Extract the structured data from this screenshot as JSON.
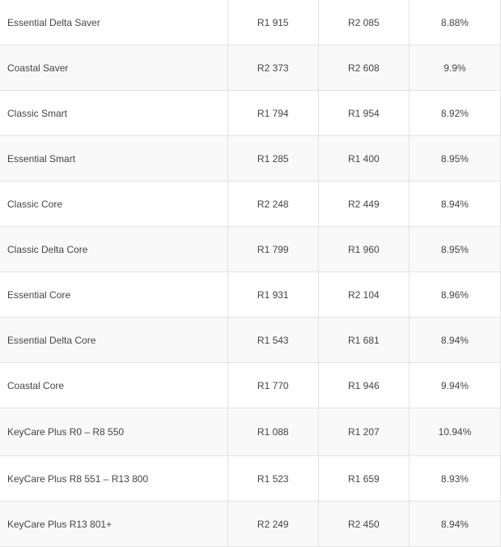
{
  "table": {
    "rows": [
      {
        "plan": "Essential Delta Saver",
        "v1": "R1 915",
        "v2": "R2 085",
        "pct": "8.88%"
      },
      {
        "plan": "Coastal Saver",
        "v1": "R2 373",
        "v2": "R2 608",
        "pct": "9.9%"
      },
      {
        "plan": "Classic Smart",
        "v1": "R1 794",
        "v2": "R1 954",
        "pct": "8.92%"
      },
      {
        "plan": "Essential Smart",
        "v1": "R1 285",
        "v2": "R1 400",
        "pct": "8.95%"
      },
      {
        "plan": "Classic Core",
        "v1": "R2 248",
        "v2": "R2 449",
        "pct": "8.94%"
      },
      {
        "plan": "Classic Delta Core",
        "v1": "R1 799",
        "v2": "R1 960",
        "pct": "8.95%"
      },
      {
        "plan": "Essential Core",
        "v1": "R1 931",
        "v2": "R2 104",
        "pct": "8.96%"
      },
      {
        "plan": "Essential Delta Core",
        "v1": "R1 543",
        "v2": "R1 681",
        "pct": "8.94%"
      },
      {
        "plan": "Coastal Core",
        "v1": "R1 770",
        "v2": "R1 946",
        "pct": "9.94%"
      },
      {
        "plan": "KeyCare Plus R0 – R8 550",
        "v1": "R1 088",
        "v2": "R1 207",
        "pct": "10.94%"
      },
      {
        "plan": "KeyCare Plus R8 551 – R13 800",
        "v1": "R1 523",
        "v2": "R1 659",
        "pct": "8.93%"
      },
      {
        "plan": "KeyCare Plus R13 801+",
        "v1": "R2 249",
        "v2": "R2 450",
        "pct": "8.94%"
      }
    ]
  }
}
